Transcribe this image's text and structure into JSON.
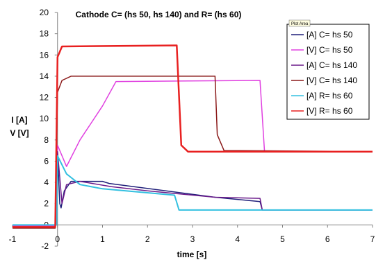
{
  "chart_data": {
    "type": "line",
    "title": "Cathode C= (hs 50, hs 140) and R= (hs 60)",
    "xlabel": "time [s]",
    "ylabel_lines": [
      "I [A]",
      "V [V]"
    ],
    "xlim": [
      -1,
      7
    ],
    "ylim": [
      -2,
      20
    ],
    "x_ticks": [
      "-1",
      "0",
      "1",
      "2",
      "3",
      "4",
      "5",
      "6",
      "7"
    ],
    "y_ticks": [
      "-2",
      "0",
      "2",
      "4",
      "6",
      "8",
      "10",
      "12",
      "14",
      "16",
      "18",
      "20"
    ],
    "grid": false,
    "legend_position": "right",
    "legend_tag": "Plot Area",
    "series": [
      {
        "name": "[A] C= hs 50",
        "color": "#1f1f7a",
        "points": [
          [
            -1,
            0
          ],
          [
            -0.02,
            0
          ],
          [
            0,
            6.8
          ],
          [
            0.05,
            2.0
          ],
          [
            0.08,
            1.6
          ],
          [
            0.15,
            3.2
          ],
          [
            0.3,
            4.1
          ],
          [
            1,
            4.1
          ],
          [
            1.15,
            3.9
          ],
          [
            3.5,
            2.6
          ],
          [
            4.5,
            2.2
          ],
          [
            4.55,
            1.4
          ],
          [
            7,
            1.4
          ]
        ]
      },
      {
        "name": "[V] C= hs 50",
        "color": "#e040e0",
        "points": [
          [
            -1,
            -0.1
          ],
          [
            -0.05,
            -0.1
          ],
          [
            0,
            7.5
          ],
          [
            0.2,
            5.5
          ],
          [
            0.5,
            8.0
          ],
          [
            1,
            11.2
          ],
          [
            1.3,
            13.5
          ],
          [
            4.5,
            13.6
          ],
          [
            4.6,
            6.9
          ],
          [
            7,
            6.9
          ]
        ]
      },
      {
        "name": "[A] C= hs 140",
        "color": "#6a1a8a",
        "points": [
          [
            -1,
            0
          ],
          [
            -0.02,
            0
          ],
          [
            0,
            6.9
          ],
          [
            0.1,
            2.0
          ],
          [
            0.2,
            3.8
          ],
          [
            0.5,
            4.1
          ],
          [
            1.2,
            3.6
          ],
          [
            2,
            3.2
          ],
          [
            3.5,
            2.6
          ],
          [
            4.5,
            2.5
          ],
          [
            4.55,
            1.4
          ],
          [
            7,
            1.4
          ]
        ]
      },
      {
        "name": "[V] C= hs 140",
        "color": "#8b1a1a",
        "points": [
          [
            -1,
            -0.3
          ],
          [
            -0.05,
            -0.3
          ],
          [
            0,
            12.5
          ],
          [
            0.1,
            13.6
          ],
          [
            0.3,
            14.0
          ],
          [
            3.5,
            14.0
          ],
          [
            3.55,
            8.5
          ],
          [
            3.7,
            7.0
          ],
          [
            7,
            6.9
          ]
        ]
      },
      {
        "name": "[A] R= hs 60",
        "color": "#33c0e0",
        "points": [
          [
            -1,
            0
          ],
          [
            -0.02,
            0
          ],
          [
            0,
            6.5
          ],
          [
            0.2,
            4.8
          ],
          [
            0.5,
            3.8
          ],
          [
            1,
            3.4
          ],
          [
            2.6,
            2.8
          ],
          [
            2.7,
            1.4
          ],
          [
            7,
            1.4
          ]
        ]
      },
      {
        "name": "[V] R= hs 60",
        "color": "#e82020",
        "points": [
          [
            -1,
            -0.2
          ],
          [
            -0.05,
            -0.2
          ],
          [
            0,
            15.8
          ],
          [
            0.1,
            16.8
          ],
          [
            2.65,
            16.9
          ],
          [
            2.75,
            7.5
          ],
          [
            2.9,
            6.9
          ],
          [
            4.5,
            6.9
          ],
          [
            7,
            6.9
          ]
        ]
      }
    ]
  }
}
